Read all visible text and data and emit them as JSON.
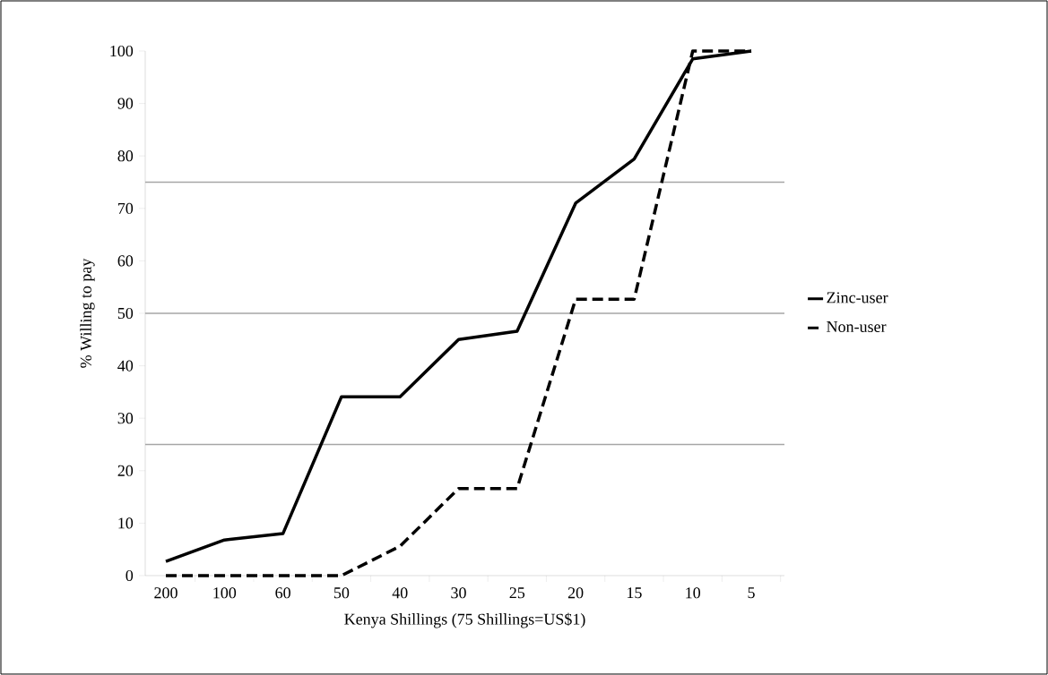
{
  "chart_data": {
    "type": "line",
    "xlabel": "Kenya Shillings (75 Shillings=US$1)",
    "ylabel": "% Willing to pay",
    "categories": [
      "200",
      "100",
      "60",
      "50",
      "40",
      "30",
      "25",
      "20",
      "15",
      "10",
      "5"
    ],
    "series": [
      {
        "name": "Zinc-user",
        "color": "#000000",
        "line_style": "solid",
        "values": [
          2.7,
          6.8,
          8.0,
          34.1,
          34.1,
          45.0,
          46.6,
          71.0,
          79.4,
          98.5,
          100
        ]
      },
      {
        "name": "Non-user",
        "color": "#000000",
        "line_style": "dashed",
        "values": [
          0,
          0,
          0,
          0,
          5.6,
          16.6,
          16.6,
          52.7,
          52.7,
          100,
          100
        ]
      }
    ],
    "ylim": [
      0,
      100
    ],
    "yticks": [
      0,
      10,
      20,
      30,
      40,
      50,
      60,
      70,
      80,
      90,
      100
    ],
    "ref_lines": [
      {
        "axis": "y",
        "value": 25,
        "color": "#a6a6a6"
      },
      {
        "axis": "y",
        "value": 50,
        "color": "#a6a6a6"
      },
      {
        "axis": "y",
        "value": 75,
        "color": "#a6a6a6"
      }
    ],
    "grid": false,
    "legend": "right",
    "marker": "none"
  }
}
